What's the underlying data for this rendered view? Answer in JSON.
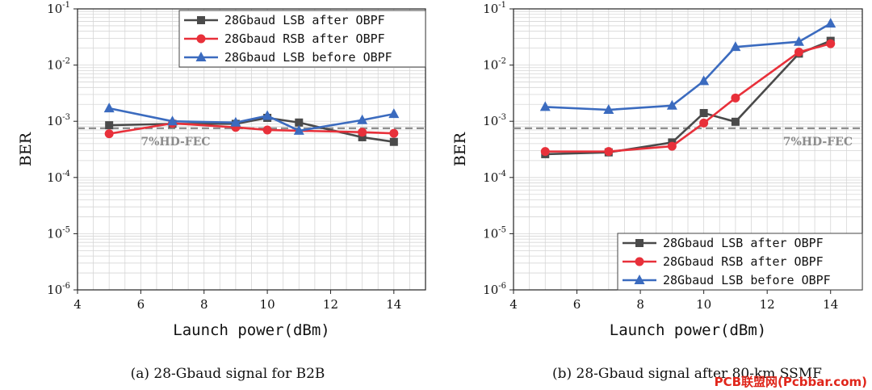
{
  "chart_data": [
    {
      "type": "line",
      "id": "a",
      "caption": "(a) 28-Gbaud signal for B2B",
      "xlabel": "Launch power(dBm)",
      "ylabel": "BER",
      "xlim": [
        4,
        15
      ],
      "ylim_log10": [
        -6,
        -1
      ],
      "xticks": [
        4,
        6,
        8,
        10,
        12,
        14
      ],
      "yticks_exp": [
        -6,
        -5,
        -4,
        -3,
        -2,
        -1
      ],
      "threshold": {
        "label": "7%HD-FEC",
        "value": 0.00075
      },
      "legend_position": "top-right",
      "series": [
        {
          "name": "28Gbaud LSB after OBPF",
          "color": "#4a4a4a",
          "marker": "square",
          "x": [
            5,
            7,
            9,
            10,
            11,
            13,
            14
          ],
          "y": [
            0.00085,
            0.0009,
            0.0009,
            0.00115,
            0.00095,
            0.00052,
            0.00043
          ]
        },
        {
          "name": "28Gbaud RSB after OBPF",
          "color": "#e8303a",
          "marker": "circle",
          "x": [
            5,
            7,
            9,
            10,
            13,
            14
          ],
          "y": [
            0.0006,
            0.00092,
            0.00078,
            0.0007,
            0.00064,
            0.00061
          ]
        },
        {
          "name": "28Gbaud LSB before OBPF",
          "color": "#3b6bbf",
          "marker": "triangle",
          "x": [
            5,
            7,
            9,
            10,
            11,
            13,
            14
          ],
          "y": [
            0.0017,
            0.001,
            0.00095,
            0.00125,
            0.00068,
            0.00105,
            0.00135
          ]
        }
      ]
    },
    {
      "type": "line",
      "id": "b",
      "caption": "(b) 28-Gbaud signal after 80-km SSMF",
      "xlabel": "Launch power(dBm)",
      "ylabel": "BER",
      "xlim": [
        4,
        15
      ],
      "ylim_log10": [
        -6,
        -1
      ],
      "xticks": [
        4,
        6,
        8,
        10,
        12,
        14
      ],
      "yticks_exp": [
        -6,
        -5,
        -4,
        -3,
        -2,
        -1
      ],
      "threshold": {
        "label": "7%HD-FEC",
        "value": 0.00075
      },
      "legend_position": "bottom-right",
      "series": [
        {
          "name": "28Gbaud LSB after OBPF",
          "color": "#4a4a4a",
          "marker": "square",
          "x": [
            5,
            7,
            9,
            10,
            11,
            13,
            14
          ],
          "y": [
            0.00026,
            0.00028,
            0.00042,
            0.0014,
            0.00098,
            0.016,
            0.027
          ]
        },
        {
          "name": "28Gbaud RSB after OBPF",
          "color": "#e8303a",
          "marker": "circle",
          "x": [
            5,
            7,
            9,
            10,
            11,
            13,
            14
          ],
          "y": [
            0.00029,
            0.00029,
            0.00036,
            0.00093,
            0.0026,
            0.017,
            0.024
          ]
        },
        {
          "name": "28Gbaud LSB before OBPF",
          "color": "#3b6bbf",
          "marker": "triangle",
          "x": [
            5,
            7,
            9,
            10,
            11,
            13,
            14
          ],
          "y": [
            0.0018,
            0.0016,
            0.0019,
            0.0052,
            0.021,
            0.026,
            0.055
          ]
        }
      ]
    }
  ],
  "watermark": "PCB联盟网(Pcbbar.com)"
}
